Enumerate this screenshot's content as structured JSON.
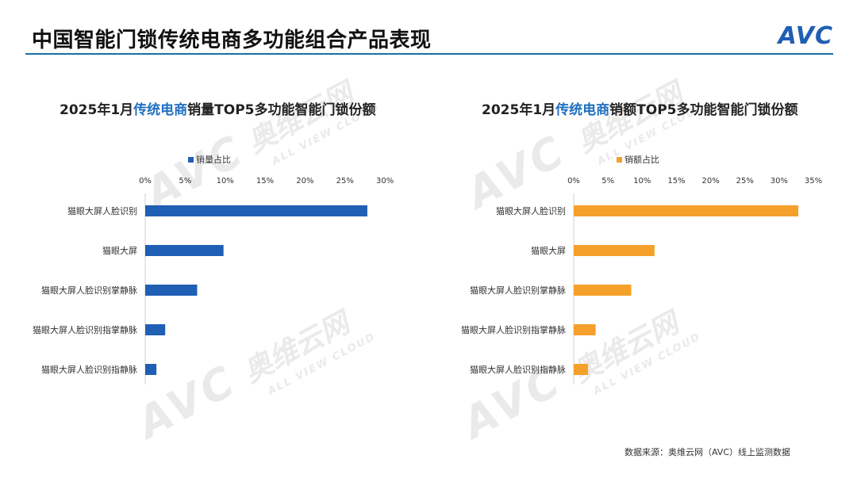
{
  "page_title": "中国智能门锁传统电商多功能组合产品表现",
  "logo_text": "AVC",
  "watermark": {
    "big": "AVC",
    "cn": "奥维云网",
    "sub": "ALL VIEW CLOUD"
  },
  "source": "数据来源：奥维云网（AVC）线上监测数据",
  "colors": {
    "blue": "#1f5fb4",
    "orange": "#f5a02a",
    "highlight": "#1f6fc0"
  },
  "chart_data": [
    {
      "type": "bar",
      "orientation": "horizontal",
      "title_parts": [
        "2025年1月",
        "传统电商",
        "销量TOP5多功能智能门锁份额"
      ],
      "legend": [
        "销量占比"
      ],
      "legend_position": "top-left",
      "categories": [
        "猫眼大屏人脸识别",
        "猫眼大屏",
        "猫眼大屏人脸识别掌静脉",
        "猫眼大屏人脸识别指掌静脉",
        "猫眼大屏人脸识别指静脉"
      ],
      "series": [
        {
          "name": "销量占比",
          "values": [
            27.8,
            9.8,
            6.5,
            2.5,
            1.4
          ],
          "color": "#1f5fb4"
        }
      ],
      "xlim": [
        0,
        30
      ],
      "xticks": [
        "0%",
        "5%",
        "10%",
        "15%",
        "20%",
        "25%",
        "30%"
      ],
      "axis_position": "top"
    },
    {
      "type": "bar",
      "orientation": "horizontal",
      "title_parts": [
        "2025年1月",
        "传统电商",
        "销额TOP5多功能智能门锁份额"
      ],
      "legend": [
        "销额占比"
      ],
      "legend_position": "top-left",
      "categories": [
        "猫眼大屏人脸识别",
        "猫眼大屏",
        "猫眼大屏人脸识别掌静脉",
        "猫眼大屏人脸识别指掌静脉",
        "猫眼大屏人脸识别指静脉"
      ],
      "series": [
        {
          "name": "销额占比",
          "values": [
            32.8,
            11.8,
            8.4,
            3.2,
            2.1
          ],
          "color": "#f5a02a"
        }
      ],
      "xlim": [
        0,
        35
      ],
      "xticks": [
        "0%",
        "5%",
        "10%",
        "15%",
        "20%",
        "25%",
        "30%",
        "35%"
      ],
      "axis_position": "top"
    }
  ]
}
